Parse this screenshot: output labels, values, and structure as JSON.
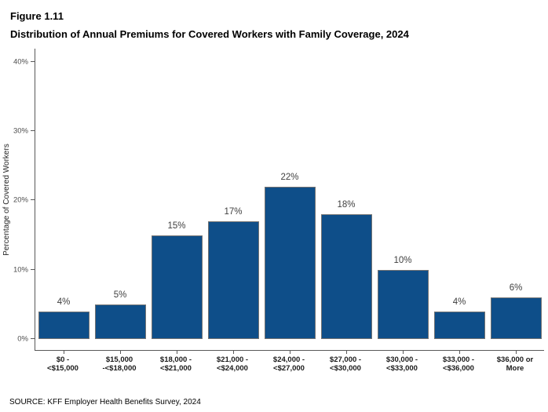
{
  "figure": {
    "label": "Figure 1.11",
    "title": "Distribution of Annual Premiums for Covered Workers with Family Coverage, 2024",
    "source": "SOURCE: KFF Employer Health Benefits Survey, 2024"
  },
  "chart_data": {
    "type": "bar",
    "title": "Distribution of Annual Premiums for Covered Workers with Family Coverage, 2024",
    "categories": [
      [
        "$0 -",
        "<$15,000"
      ],
      [
        "$15,000",
        "-<$18,000"
      ],
      [
        "$18,000 -",
        "<$21,000"
      ],
      [
        "$21,000 -",
        "<$24,000"
      ],
      [
        "$24,000 -",
        "<$27,000"
      ],
      [
        "$27,000 -",
        "<$30,000"
      ],
      [
        "$30,000 -",
        "<$33,000"
      ],
      [
        "$33,000 -",
        "<$36,000"
      ],
      [
        "$36,000 or",
        "More"
      ]
    ],
    "values": [
      4,
      5,
      15,
      17,
      22,
      18,
      10,
      4,
      6
    ],
    "value_labels": [
      "4%",
      "5%",
      "15%",
      "17%",
      "22%",
      "18%",
      "10%",
      "4%",
      "6%"
    ],
    "xlabel": "",
    "ylabel": "Percentage of Covered Workers",
    "y_ticks": [
      0,
      10,
      20,
      30,
      40
    ],
    "y_tick_labels": [
      "0%",
      "10%",
      "20%",
      "30%",
      "40%"
    ],
    "ylim": [
      0,
      41.5
    ],
    "grid": false,
    "legend": false,
    "colors": {
      "bar_fill": "#0E4E89",
      "bar_border": "#737373",
      "axis": "#595959",
      "tick_label": "#4d4d4d",
      "value_label": "#404040"
    }
  }
}
